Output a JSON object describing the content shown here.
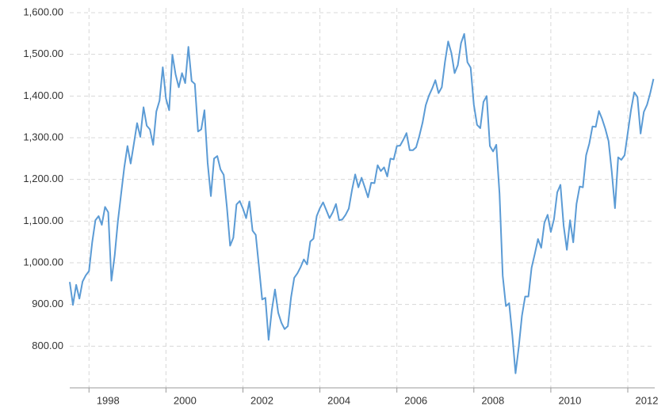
{
  "chart_data": {
    "type": "line",
    "xlim": [
      1997.5,
      2012.7
    ],
    "xticks": [
      1998,
      2000,
      2002,
      2004,
      2006,
      2008,
      2010,
      2012
    ],
    "ylim": [
      700,
      1600
    ],
    "yticks": [
      {
        "value": 800,
        "label": "800.00"
      },
      {
        "value": 900,
        "label": "900.00"
      },
      {
        "value": 1000,
        "label": "1,000.00"
      },
      {
        "value": 1100,
        "label": "1,100.00"
      },
      {
        "value": 1200,
        "label": "1,200.00"
      },
      {
        "value": 1300,
        "label": "1,300.00"
      },
      {
        "value": 1400,
        "label": "1,400.00"
      },
      {
        "value": 1500,
        "label": "1,500.00"
      },
      {
        "value": 1600,
        "label": "1,600.00"
      }
    ],
    "grid": true,
    "series": [
      {
        "color": "#5b9bd5",
        "x": [
          1997.5,
          1997.583,
          1997.667,
          1997.75,
          1997.833,
          1997.917,
          1998,
          1998.083,
          1998.167,
          1998.25,
          1998.333,
          1998.417,
          1998.5,
          1998.583,
          1998.667,
          1998.75,
          1998.833,
          1998.917,
          1999,
          1999.083,
          1999.167,
          1999.25,
          1999.333,
          1999.417,
          1999.5,
          1999.583,
          1999.667,
          1999.75,
          1999.833,
          1999.917,
          2000,
          2000.083,
          2000.167,
          2000.25,
          2000.333,
          2000.417,
          2000.5,
          2000.583,
          2000.667,
          2000.75,
          2000.833,
          2000.917,
          2001,
          2001.083,
          2001.167,
          2001.25,
          2001.333,
          2001.417,
          2001.5,
          2001.583,
          2001.667,
          2001.75,
          2001.833,
          2001.917,
          2002,
          2002.083,
          2002.167,
          2002.25,
          2002.333,
          2002.417,
          2002.5,
          2002.583,
          2002.667,
          2002.75,
          2002.833,
          2002.917,
          2003,
          2003.083,
          2003.167,
          2003.25,
          2003.333,
          2003.417,
          2003.5,
          2003.583,
          2003.667,
          2003.75,
          2003.833,
          2003.917,
          2004,
          2004.083,
          2004.167,
          2004.25,
          2004.333,
          2004.417,
          2004.5,
          2004.583,
          2004.667,
          2004.75,
          2004.833,
          2004.917,
          2005,
          2005.083,
          2005.167,
          2005.25,
          2005.333,
          2005.417,
          2005.5,
          2005.583,
          2005.667,
          2005.75,
          2005.833,
          2005.917,
          2006,
          2006.083,
          2006.167,
          2006.25,
          2006.333,
          2006.417,
          2006.5,
          2006.583,
          2006.667,
          2006.75,
          2006.833,
          2006.917,
          2007,
          2007.083,
          2007.167,
          2007.25,
          2007.333,
          2007.417,
          2007.5,
          2007.583,
          2007.667,
          2007.75,
          2007.833,
          2007.917,
          2008,
          2008.083,
          2008.167,
          2008.25,
          2008.333,
          2008.417,
          2008.5,
          2008.583,
          2008.667,
          2008.75,
          2008.833,
          2008.917,
          2009,
          2009.083,
          2009.167,
          2009.25,
          2009.333,
          2009.417,
          2009.5,
          2009.583,
          2009.667,
          2009.75,
          2009.833,
          2009.917,
          2010,
          2010.083,
          2010.167,
          2010.25,
          2010.333,
          2010.417,
          2010.5,
          2010.583,
          2010.667,
          2010.75,
          2010.833,
          2010.917,
          2011,
          2011.083,
          2011.167,
          2011.25,
          2011.333,
          2011.417,
          2011.5,
          2011.583,
          2011.667,
          2011.75,
          2011.833,
          2011.917,
          2012,
          2012.083,
          2012.167,
          2012.25,
          2012.333,
          2012.417,
          2012.5,
          2012.583,
          2012.667
        ],
        "values": [
          954,
          899,
          947,
          914,
          955,
          970,
          980,
          1049,
          1102,
          1112,
          1091,
          1134,
          1121,
          957,
          1017,
          1099,
          1164,
          1229,
          1280,
          1238,
          1286,
          1335,
          1302,
          1373,
          1329,
          1320,
          1283,
          1363,
          1389,
          1469,
          1394,
          1366,
          1499,
          1452,
          1421,
          1455,
          1431,
          1518,
          1436,
          1429,
          1315,
          1320,
          1366,
          1240,
          1160,
          1250,
          1256,
          1224,
          1211,
          1134,
          1041,
          1060,
          1140,
          1148,
          1130,
          1107,
          1147,
          1077,
          1067,
          990,
          912,
          916,
          815,
          886,
          936,
          880,
          856,
          841,
          848,
          917,
          964,
          975,
          990,
          1008,
          996,
          1051,
          1058,
          1112,
          1131,
          1145,
          1126,
          1107,
          1121,
          1141,
          1102,
          1104,
          1115,
          1130,
          1174,
          1212,
          1181,
          1204,
          1181,
          1157,
          1192,
          1191,
          1234,
          1220,
          1229,
          1207,
          1250,
          1248,
          1280,
          1281,
          1295,
          1311,
          1270,
          1270,
          1277,
          1304,
          1336,
          1378,
          1401,
          1418,
          1438,
          1407,
          1421,
          1482,
          1531,
          1503,
          1455,
          1474,
          1527,
          1549,
          1481,
          1468,
          1379,
          1331,
          1323,
          1386,
          1400,
          1280,
          1267,
          1283,
          1166,
          969,
          896,
          903,
          826,
          735,
          798,
          873,
          919,
          919,
          988,
          1021,
          1057,
          1036,
          1096,
          1115,
          1074,
          1105,
          1169,
          1187,
          1089,
          1031,
          1102,
          1049,
          1141,
          1183,
          1181,
          1258,
          1286,
          1327,
          1326,
          1364,
          1345,
          1321,
          1292,
          1219,
          1131,
          1253,
          1247,
          1258,
          1312,
          1366,
          1409,
          1398,
          1310,
          1362,
          1379,
          1407,
          1441
        ]
      }
    ]
  }
}
